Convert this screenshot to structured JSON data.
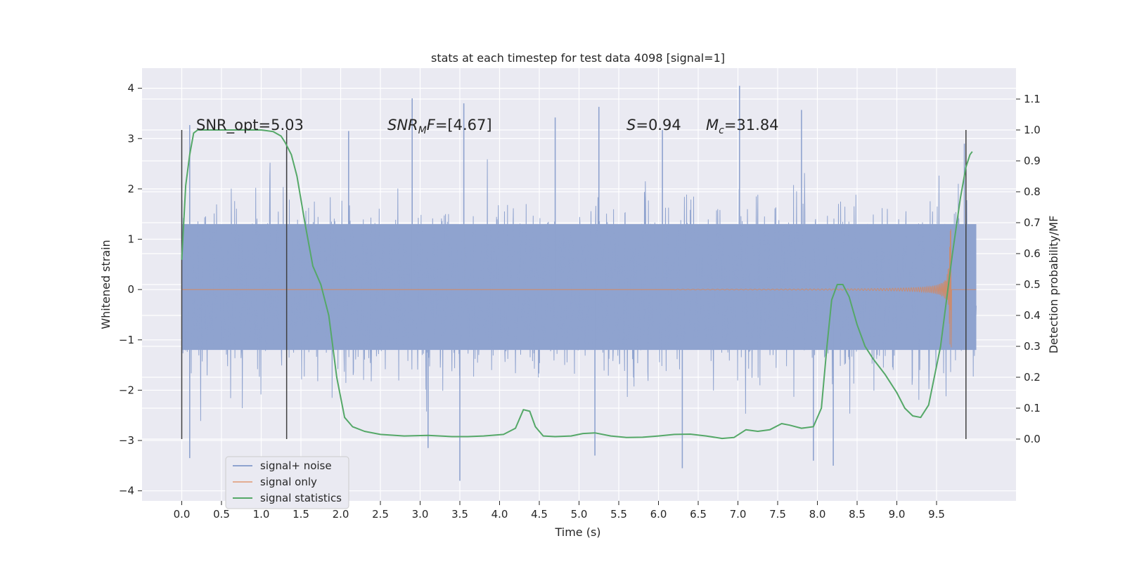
{
  "chart_data": {
    "type": "line",
    "title": "stats at each timestep for test data 4098 [signal=1]",
    "xlabel": "Time (s)",
    "ylabel": "Whitened strain",
    "y2label": "Detection probability/MF",
    "xlim": [
      -0.5,
      10.5
    ],
    "ylim": [
      -4.2,
      4.4
    ],
    "y2lim": [
      -0.2,
      1.2
    ],
    "xticks": [
      "0.0",
      "0.5",
      "1.0",
      "1.5",
      "2.0",
      "2.5",
      "3.0",
      "3.5",
      "4.0",
      "4.5",
      "5.0",
      "5.5",
      "6.0",
      "6.5",
      "7.0",
      "7.5",
      "8.0",
      "8.5",
      "9.0",
      "9.5"
    ],
    "yticks": [
      "4",
      "3",
      "2",
      "1",
      "0",
      "−1",
      "−2",
      "−3",
      "−4"
    ],
    "y2ticks": [
      "1.1",
      "1.0",
      "0.9",
      "0.8",
      "0.7",
      "0.6",
      "0.5",
      "0.4",
      "0.3",
      "0.2",
      "0.1",
      "0.0"
    ],
    "grid": true,
    "legend_position": "lower-left",
    "colors": {
      "noise": "#8fa3cf",
      "signal": "#dd8452",
      "stats": "#55a868",
      "vline": "#404040",
      "background": "#eaeaf2"
    },
    "annotations": {
      "snr_opt": "SNR_opt=5.03",
      "snr_mf": "=[4.67]",
      "snr_mf_sym": "SNR",
      "snr_mf_sub": "M",
      "snr_mf_f": "F",
      "s_sym": "S",
      "s_val": "=0.94",
      "mc_sym": "M",
      "mc_sub": "c",
      "mc_val": "=31.84"
    },
    "vertical_lines_x": [
      0.0,
      1.32,
      9.87
    ],
    "series": [
      {
        "name": "signal+ noise",
        "axis": "left",
        "x_range": [
          0.0,
          10.0
        ],
        "envelope_hi": 2.2,
        "envelope_lo": -2.2,
        "dense_band": [
          -1.2,
          1.3
        ],
        "notable_spikes": [
          {
            "x": 0.1,
            "y": 3.27
          },
          {
            "x": 1.32,
            "y": 2.78
          },
          {
            "x": 2.1,
            "y": 3.15
          },
          {
            "x": 2.9,
            "y": 3.8
          },
          {
            "x": 3.55,
            "y": 3.7
          },
          {
            "x": 4.7,
            "y": 3.42
          },
          {
            "x": 5.25,
            "y": 3.63
          },
          {
            "x": 6.05,
            "y": 3.17
          },
          {
            "x": 7.02,
            "y": 4.05
          },
          {
            "x": 7.8,
            "y": 3.57
          },
          {
            "x": 9.85,
            "y": 2.9
          },
          {
            "x": 0.1,
            "y": -3.35
          },
          {
            "x": 3.5,
            "y": -3.8
          },
          {
            "x": 5.2,
            "y": -3.3
          },
          {
            "x": 6.3,
            "y": -3.55
          },
          {
            "x": 7.95,
            "y": -3.4
          },
          {
            "x": 8.2,
            "y": -3.5
          },
          {
            "x": 3.1,
            "y": -3.15
          }
        ]
      },
      {
        "name": "signal only",
        "axis": "left",
        "chirp_start": 6.2,
        "chirp_end": 9.68,
        "peak_amplitude": 1.2,
        "min_amplitude": -1.15
      },
      {
        "name": "signal statistics",
        "axis": "right",
        "x": [
          0.0,
          0.05,
          0.1,
          0.15,
          0.2,
          0.3,
          0.5,
          0.8,
          1.0,
          1.15,
          1.25,
          1.3,
          1.38,
          1.45,
          1.55,
          1.65,
          1.75,
          1.85,
          1.95,
          2.05,
          2.15,
          2.3,
          2.5,
          2.8,
          3.1,
          3.4,
          3.6,
          3.8,
          4.05,
          4.2,
          4.3,
          4.38,
          4.45,
          4.55,
          4.7,
          4.9,
          5.05,
          5.2,
          5.4,
          5.6,
          5.8,
          6.0,
          6.2,
          6.4,
          6.6,
          6.8,
          6.95,
          7.1,
          7.25,
          7.4,
          7.55,
          7.65,
          7.8,
          7.95,
          8.05,
          8.12,
          8.18,
          8.25,
          8.32,
          8.4,
          8.5,
          8.6,
          8.7,
          8.85,
          9.0,
          9.1,
          9.2,
          9.3,
          9.4,
          9.55,
          9.7,
          9.8,
          9.87,
          9.92,
          9.95
        ],
        "y": [
          0.58,
          0.82,
          0.92,
          0.99,
          1.0,
          1.0,
          1.0,
          1.0,
          1.0,
          0.995,
          0.98,
          0.96,
          0.92,
          0.85,
          0.7,
          0.56,
          0.5,
          0.4,
          0.2,
          0.07,
          0.04,
          0.025,
          0.015,
          0.01,
          0.012,
          0.008,
          0.008,
          0.01,
          0.015,
          0.035,
          0.095,
          0.09,
          0.04,
          0.01,
          0.008,
          0.01,
          0.018,
          0.02,
          0.01,
          0.005,
          0.006,
          0.01,
          0.015,
          0.016,
          0.01,
          0.002,
          0.005,
          0.03,
          0.025,
          0.03,
          0.05,
          0.045,
          0.035,
          0.04,
          0.1,
          0.3,
          0.45,
          0.5,
          0.5,
          0.46,
          0.37,
          0.3,
          0.26,
          0.21,
          0.15,
          0.1,
          0.075,
          0.07,
          0.11,
          0.3,
          0.6,
          0.78,
          0.88,
          0.92,
          0.93
        ]
      }
    ]
  }
}
